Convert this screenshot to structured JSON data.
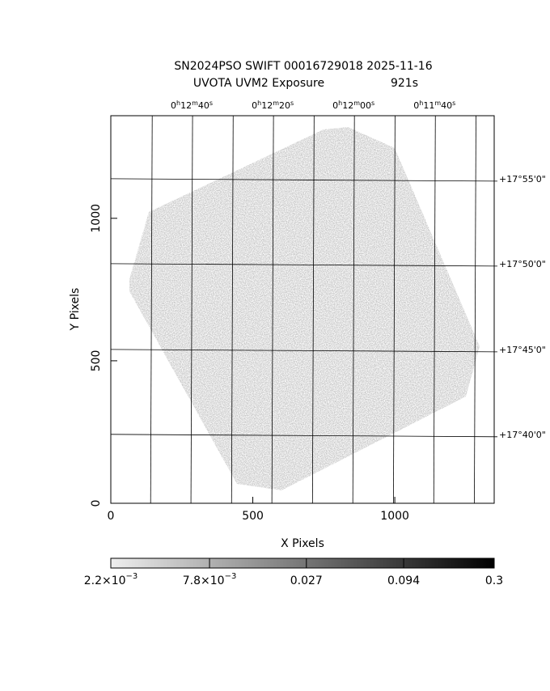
{
  "chart_data": {
    "type": "image",
    "title": "SN2024PSO SWIFT 00016729018 2025-11-16",
    "subtitle": "UVOTA UVM2 Exposure",
    "exposure": "921s",
    "xlabel": "X Pixels",
    "ylabel": "Y Pixels",
    "xlim": [
      0,
      1350
    ],
    "ylim": [
      0,
      1360
    ],
    "xticks": [
      0,
      500,
      1000
    ],
    "yticks": [
      0,
      500,
      1000
    ],
    "x2ticks": [
      {
        "value": 285,
        "label": "0h12m40s"
      },
      {
        "value": 570,
        "label": "0h12m20s"
      },
      {
        "value": 855,
        "label": "0h12m00s"
      },
      {
        "value": 1140,
        "label": "0h11m40s"
      }
    ],
    "x2minor": [
      143,
      428,
      713,
      998,
      1283
    ],
    "y2ticks": [
      {
        "value": 1136,
        "label": "+17°55'0\""
      },
      {
        "value": 838,
        "label": "+17°50'0\""
      },
      {
        "value": 537,
        "label": "+17°45'0\""
      },
      {
        "value": 239,
        "label": "+17°40'0\""
      }
    ],
    "colorbar": {
      "lim": [
        0.0022,
        0.3
      ],
      "log": true,
      "ticks": [
        {
          "value": 0.0022,
          "label": "2.2×10−3"
        },
        {
          "value": 0.0078,
          "label": "7.8×10−3"
        },
        0.027,
        0.094,
        0.3
      ]
    }
  }
}
